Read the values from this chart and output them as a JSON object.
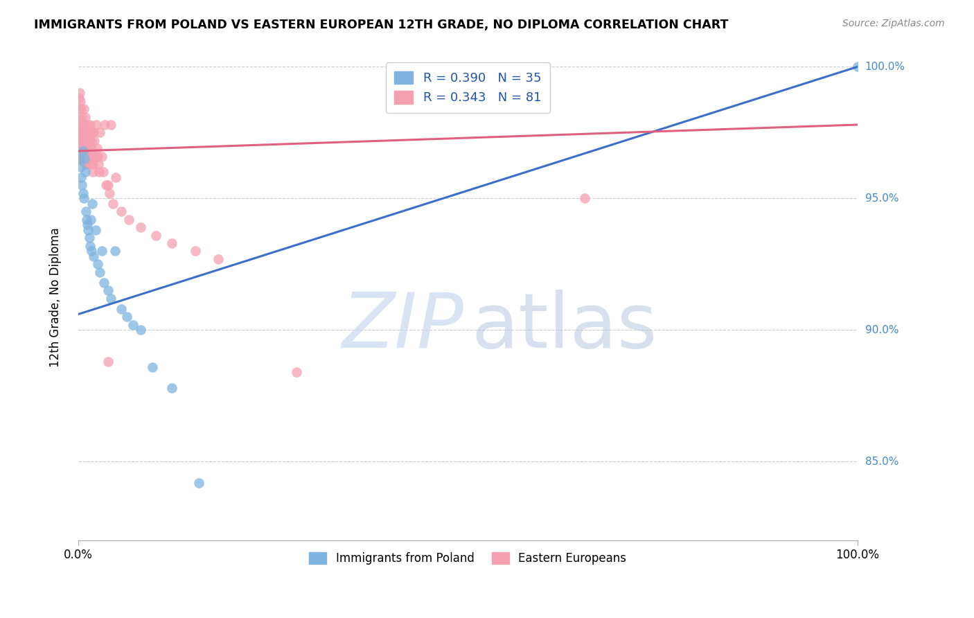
{
  "title": "IMMIGRANTS FROM POLAND VS EASTERN EUROPEAN 12TH GRADE, NO DIPLOMA CORRELATION CHART",
  "source": "Source: ZipAtlas.com",
  "ylabel": "12th Grade, No Diploma",
  "legend_poland_label": "Immigrants from Poland",
  "legend_eastern_label": "Eastern Europeans",
  "poland_R": 0.39,
  "poland_N": 35,
  "eastern_R": 0.343,
  "eastern_N": 81,
  "poland_color": "#7EB3E0",
  "eastern_color": "#F4A0B0",
  "poland_line_color": "#3A6EC8",
  "eastern_line_color": "#E06080",
  "background_color": "#FFFFFF",
  "grid_color": "#CCCCCC",
  "xlim": [
    0.0,
    1.0
  ],
  "ylim": [
    0.82,
    1.005
  ],
  "blue_line_x": [
    0.0,
    1.0
  ],
  "blue_line_y": [
    0.906,
    1.0
  ],
  "pink_line_x": [
    0.0,
    1.0
  ],
  "pink_line_y": [
    0.968,
    0.978
  ],
  "poland_scatter_x": [
    0.002,
    0.003,
    0.004,
    0.005,
    0.006,
    0.006,
    0.007,
    0.008,
    0.009,
    0.01,
    0.011,
    0.012,
    0.013,
    0.014,
    0.015,
    0.016,
    0.017,
    0.018,
    0.02,
    0.022,
    0.025,
    0.028,
    0.03,
    0.033,
    0.038,
    0.042,
    0.047,
    0.055,
    0.062,
    0.07,
    0.08,
    0.095,
    0.12,
    0.155,
    1.0
  ],
  "poland_scatter_y": [
    0.965,
    0.962,
    0.958,
    0.955,
    0.952,
    0.968,
    0.95,
    0.965,
    0.96,
    0.945,
    0.942,
    0.94,
    0.938,
    0.935,
    0.932,
    0.942,
    0.93,
    0.948,
    0.928,
    0.938,
    0.925,
    0.922,
    0.93,
    0.918,
    0.915,
    0.912,
    0.93,
    0.908,
    0.905,
    0.902,
    0.9,
    0.886,
    0.878,
    0.842,
    1.0
  ],
  "eastern_scatter_x": [
    0.001,
    0.002,
    0.002,
    0.002,
    0.003,
    0.003,
    0.003,
    0.004,
    0.004,
    0.005,
    0.005,
    0.005,
    0.006,
    0.006,
    0.006,
    0.007,
    0.007,
    0.007,
    0.008,
    0.008,
    0.008,
    0.009,
    0.009,
    0.009,
    0.01,
    0.01,
    0.01,
    0.011,
    0.011,
    0.012,
    0.012,
    0.013,
    0.013,
    0.014,
    0.014,
    0.015,
    0.015,
    0.016,
    0.016,
    0.017,
    0.017,
    0.018,
    0.018,
    0.019,
    0.019,
    0.02,
    0.021,
    0.022,
    0.023,
    0.024,
    0.025,
    0.026,
    0.027,
    0.028,
    0.03,
    0.032,
    0.034,
    0.036,
    0.038,
    0.04,
    0.042,
    0.045,
    0.048,
    0.055,
    0.065,
    0.08,
    0.1,
    0.12,
    0.15,
    0.18,
    0.002,
    0.003,
    0.004,
    0.005,
    0.007,
    0.009,
    0.012,
    0.015,
    0.65,
    0.28,
    0.038
  ],
  "eastern_scatter_y": [
    0.988,
    0.984,
    0.98,
    0.977,
    0.978,
    0.975,
    0.972,
    0.976,
    0.973,
    0.972,
    0.969,
    0.966,
    0.97,
    0.967,
    0.964,
    0.975,
    0.972,
    0.969,
    0.967,
    0.964,
    0.978,
    0.969,
    0.966,
    0.963,
    0.975,
    0.972,
    0.969,
    0.966,
    0.963,
    0.975,
    0.972,
    0.969,
    0.966,
    0.975,
    0.972,
    0.978,
    0.975,
    0.966,
    0.963,
    0.972,
    0.969,
    0.975,
    0.966,
    0.963,
    0.96,
    0.975,
    0.972,
    0.966,
    0.978,
    0.969,
    0.966,
    0.963,
    0.96,
    0.975,
    0.966,
    0.96,
    0.978,
    0.955,
    0.955,
    0.952,
    0.978,
    0.948,
    0.958,
    0.945,
    0.942,
    0.939,
    0.936,
    0.933,
    0.93,
    0.927,
    0.99,
    0.987,
    0.984,
    0.981,
    0.984,
    0.981,
    0.978,
    0.975,
    0.95,
    0.884,
    0.888
  ]
}
